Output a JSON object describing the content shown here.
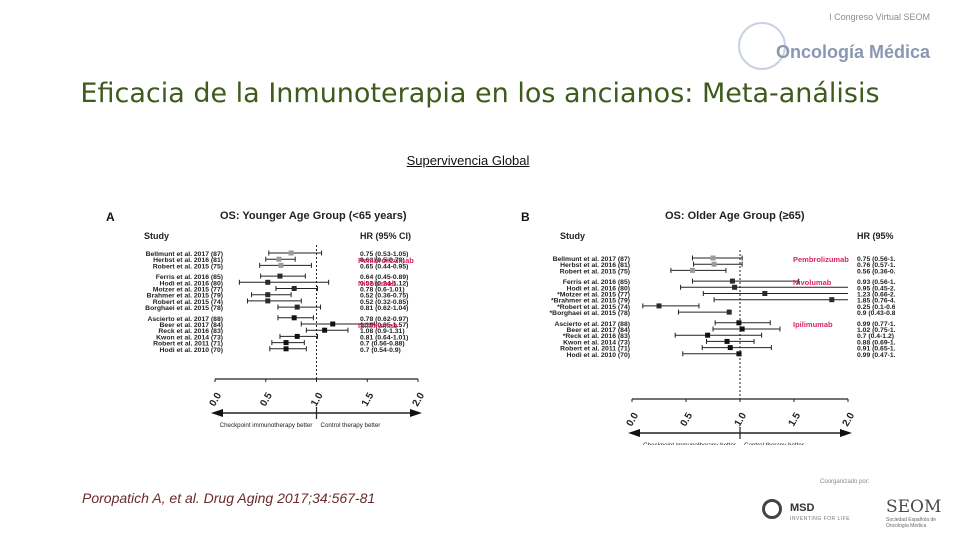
{
  "header": {
    "congress_line": "I Congreso Virtual SEOM",
    "congress_name": "Oncología Médica"
  },
  "slide": {
    "title": "Eficacia de la Inmunoterapia en los ancianos: Meta-análisis",
    "subtitle": "Supervivencia Global"
  },
  "citation": "Poropatich A, et al. Drug Aging 2017;34:567-81",
  "footer": {
    "sponsor_note": "Coorganizado por:",
    "msd": "MSD",
    "msd_tagline": "INVENTING FOR LIFE",
    "seom": "SEOM",
    "seom_sub": "Sociedad Española de Oncología Médica"
  },
  "colors": {
    "title": "#3f5a1c",
    "drug_label": "#e0245e",
    "citation": "#6a2a2a"
  },
  "chart_data": [
    {
      "type": "forest",
      "panel": "A",
      "title": "OS: Younger Age Group (<65 years)",
      "study_header": "Study",
      "ci_header": "HR (95% CI)",
      "x_ticks": [
        0.0,
        0.5,
        1.0,
        1.5,
        2.0
      ],
      "xlim": [
        0,
        2
      ],
      "reference_line": 1.0,
      "arrow_left_label": "Checkpoint immunotherapy better",
      "arrow_right_label": "Control therapy better",
      "groups": [
        {
          "drug": "Pembrolizumab",
          "studies": [
            {
              "study": "Bellmunt et al. 2017 (87)",
              "hr_text": "0.75 (0.53-1.05)",
              "hr": 0.75,
              "lo": 0.53,
              "hi": 1.05
            },
            {
              "study": "Herbst et al. 2016 (81)",
              "hr_text": "0.63 (0.5-0.79)",
              "hr": 0.63,
              "lo": 0.5,
              "hi": 0.79
            },
            {
              "study": "Robert et al. 2015 (75)",
              "hr_text": "0.65 (0.44-0.95)",
              "hr": 0.65,
              "lo": 0.44,
              "hi": 0.95
            }
          ]
        },
        {
          "drug": "Nivolumab",
          "studies": [
            {
              "study": "Ferris et al. 2016 (85)",
              "hr_text": "0.64 (0.45-0.89)",
              "hr": 0.64,
              "lo": 0.45,
              "hi": 0.89
            },
            {
              "study": "Hodi et al. 2016 (80)",
              "hr_text": "0.52 (0.24-1.12)",
              "hr": 0.52,
              "lo": 0.24,
              "hi": 1.12
            },
            {
              "study": "Motzer et al. 2015 (77)",
              "hr_text": "0.78 (0.6-1.01)",
              "hr": 0.78,
              "lo": 0.6,
              "hi": 1.01
            },
            {
              "study": "Brahmer et al. 2015 (79)",
              "hr_text": "0.52 (0.36-0.75)",
              "hr": 0.52,
              "lo": 0.36,
              "hi": 0.75
            },
            {
              "study": "Robert et al. 2015 (74)",
              "hr_text": "0.52 (0.32-0.85)",
              "hr": 0.52,
              "lo": 0.32,
              "hi": 0.85
            },
            {
              "study": "Borghaei et al. 2015 (78)",
              "hr_text": "0.81 (0.62-1.04)",
              "hr": 0.81,
              "lo": 0.62,
              "hi": 1.04
            }
          ]
        },
        {
          "drug": "Ipilimumab",
          "studies": [
            {
              "study": "Ascierto et al. 2017 (88)",
              "hr_text": "0.78 (0.62-0.97)",
              "hr": 0.78,
              "lo": 0.62,
              "hi": 0.97
            },
            {
              "study": "Beer et al. 2017 (84)",
              "hr_text": "1.16 (0.85-1.57)",
              "hr": 1.16,
              "lo": 0.85,
              "hi": 1.57
            },
            {
              "study": "Reck et al. 2016 (83)",
              "hr_text": "1.08 (0.9-1.31)",
              "hr": 1.08,
              "lo": 0.9,
              "hi": 1.31
            },
            {
              "study": "Kwon et al. 2014 (73)",
              "hr_text": "0.81 (0.64-1.01)",
              "hr": 0.81,
              "lo": 0.64,
              "hi": 1.01
            },
            {
              "study": "Robert et al. 2011 (71)",
              "hr_text": "0.7 (0.56-0.88)",
              "hr": 0.7,
              "lo": 0.56,
              "hi": 0.88
            },
            {
              "study": "Hodi et al. 2010 (70)",
              "hr_text": "0.7 (0.54-0.9)",
              "hr": 0.7,
              "lo": 0.54,
              "hi": 0.9
            }
          ]
        }
      ]
    },
    {
      "type": "forest",
      "panel": "B",
      "title": "OS: Older Age Group (≥65)",
      "study_header": "Study",
      "ci_header": "HR (95% CI)",
      "x_ticks": [
        0.0,
        0.5,
        1.0,
        1.5,
        2.0
      ],
      "xlim": [
        0,
        2
      ],
      "reference_line": 1.0,
      "arrow_left_label": "Checkpoint immunotherapy better",
      "arrow_right_label": "Control therapy better",
      "groups": [
        {
          "drug": "Pembrolizumab",
          "studies": [
            {
              "study": "Bellmunt et al. 2017 (87)",
              "hr_text": "0.75 (0.56-1.02)",
              "hr": 0.75,
              "lo": 0.56,
              "hi": 1.02
            },
            {
              "study": "Herbst et al. 2016 (81)",
              "hr_text": "0.76 (0.57-1.02)",
              "hr": 0.76,
              "lo": 0.57,
              "hi": 1.02
            },
            {
              "study": "Robert et al. 2015 (75)",
              "hr_text": "0.56 (0.36-0.87)",
              "hr": 0.56,
              "lo": 0.36,
              "hi": 0.87
            }
          ]
        },
        {
          "drug": "Nivolumab",
          "studies": [
            {
              "study": "Ferris et al. 2016 (85)",
              "hr_text": "0.93 (0.56-1.54)",
              "hr": 0.93,
              "lo": 0.56,
              "hi": 1.54
            },
            {
              "study": "Hodi et al. 2016 (80)",
              "hr_text": "0.95 (0.45-2.02)",
              "hr": 0.95,
              "lo": 0.45,
              "hi": 2.02
            },
            {
              "study": "*Motzer et al. 2015 (77)",
              "hr_text": "1.23 (0.66-2.31)",
              "hr": 1.23,
              "lo": 0.66,
              "hi": 2.31
            },
            {
              "study": "*Brahmer et al. 2015 (79)",
              "hr_text": "1.85 (0.76-4.51)",
              "hr": 1.85,
              "lo": 0.76,
              "hi": 4.51
            },
            {
              "study": "*Robert et al. 2015 (74)",
              "hr_text": "0.25 (0.1-0.62)",
              "hr": 0.25,
              "lo": 0.1,
              "hi": 0.62
            },
            {
              "study": "*Borghaei et al. 2015 (78)",
              "hr_text": "0.9 (0.43-0.89)",
              "hr": 0.9,
              "lo": 0.43,
              "hi": 0.89
            }
          ]
        },
        {
          "drug": "Ipilimumab",
          "studies": [
            {
              "study": "Ascierto et al. 2017 (88)",
              "hr_text": "0.99 (0.77-1.28)",
              "hr": 0.99,
              "lo": 0.77,
              "hi": 1.28
            },
            {
              "study": "Beer et al. 2017 (84)",
              "hr_text": "1.02 (0.75-1.37)",
              "hr": 1.02,
              "lo": 0.75,
              "hi": 1.37
            },
            {
              "study": "*Reck et al. 2016 (83)",
              "hr_text": "0.7 (0.4-1.2)",
              "hr": 0.7,
              "lo": 0.4,
              "hi": 1.2
            },
            {
              "study": "Kwon et al. 2014 (73)",
              "hr_text": "0.88 (0.69-1.13)",
              "hr": 0.88,
              "lo": 0.69,
              "hi": 1.13
            },
            {
              "study": "Robert et al. 2011 (71)",
              "hr_text": "0.91 (0.65-1.29)",
              "hr": 0.91,
              "lo": 0.65,
              "hi": 1.29
            },
            {
              "study": "Hodi et al. 2010 (70)",
              "hr_text": "0.99 (0.47-1.01)",
              "hr": 0.99,
              "lo": 0.47,
              "hi": 1.01
            }
          ]
        }
      ]
    }
  ]
}
